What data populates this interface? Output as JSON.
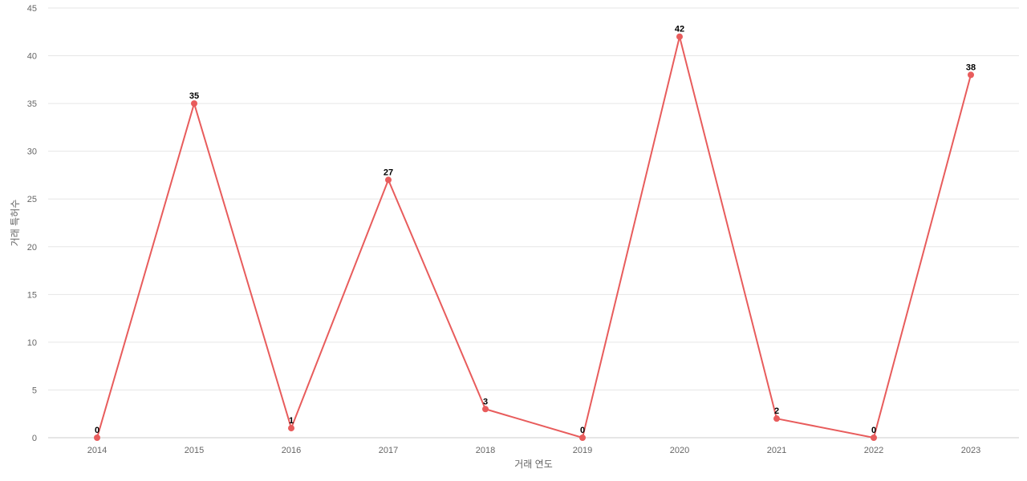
{
  "chart_data": {
    "type": "line",
    "xlabel": "거래 연도",
    "ylabel": "거래 특허수",
    "ylim": [
      0,
      45
    ],
    "yticks": [
      0,
      5,
      10,
      15,
      20,
      25,
      30,
      35,
      40,
      45
    ],
    "categories": [
      "2014",
      "2015",
      "2016",
      "2017",
      "2018",
      "2019",
      "2020",
      "2021",
      "2022",
      "2023"
    ],
    "values": [
      0,
      35,
      1,
      27,
      3,
      0,
      42,
      2,
      0,
      38
    ],
    "grid": true,
    "data_labels": true,
    "series_color": "#e85c5c"
  }
}
